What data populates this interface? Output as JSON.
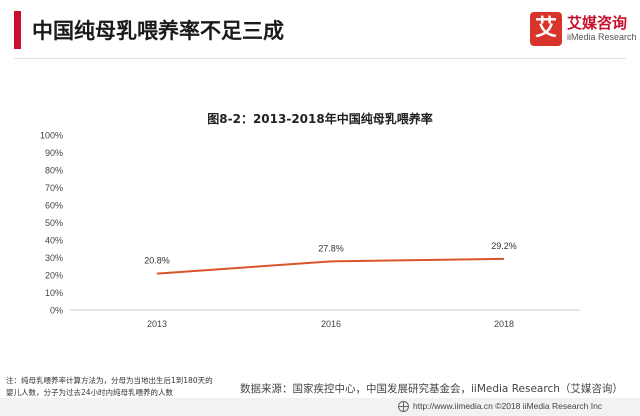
{
  "header": {
    "title": "中国纯母乳喂养率不足三成",
    "logo_mark": "艾",
    "logo_cn": "艾媒咨询",
    "logo_en": "iiMedia Research"
  },
  "chart_data": {
    "type": "line",
    "title": "图8-2：2013-2018年中国纯母乳喂养率",
    "x": [
      "2013",
      "2016",
      "2018"
    ],
    "series": [
      {
        "values": [
          20.8,
          27.8,
          29.2
        ],
        "labels": [
          "20.8%",
          "27.8%",
          "29.2%"
        ]
      }
    ],
    "ylim": [
      0,
      100
    ],
    "yticks": [
      "0%",
      "10%",
      "20%",
      "30%",
      "40%",
      "50%",
      "60%",
      "70%",
      "80%",
      "90%",
      "100%"
    ],
    "grid": false,
    "line_color": "#d9542b"
  },
  "note": "注：纯母乳喂养率计算方法为，分母为当地出生后1到180天的婴儿人数，分子为过去24小时内纯母乳喂养的人数",
  "source": "数据来源：国家疾控中心，中国发展研究基金会，iiMedia Research（艾媒咨询）",
  "footer": {
    "text": "http://www.iimedia.cn   ©2018  iiMedia Research Inc"
  }
}
